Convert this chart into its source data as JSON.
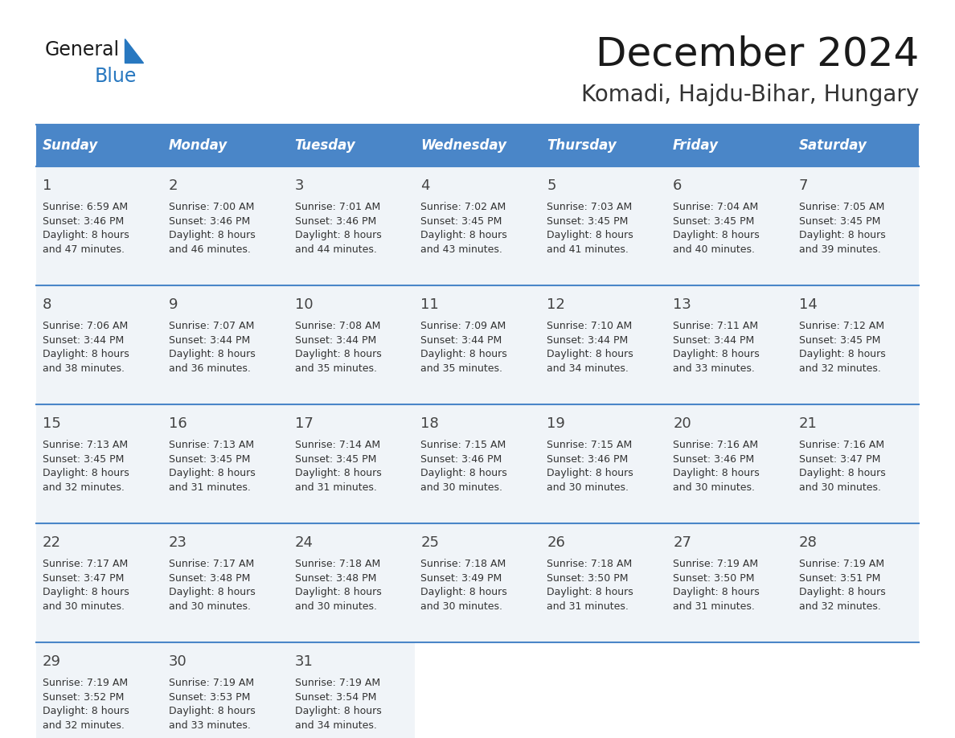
{
  "title": "December 2024",
  "subtitle": "Komadi, Hajdu-Bihar, Hungary",
  "header_bg_color": "#4a86c8",
  "header_text_color": "#ffffff",
  "days_of_week": [
    "Sunday",
    "Monday",
    "Tuesday",
    "Wednesday",
    "Thursday",
    "Friday",
    "Saturday"
  ],
  "row_bg_color": "#f0f4f8",
  "empty_bg_color": "#ffffff",
  "grid_line_color": "#4a86c8",
  "text_color": "#333333",
  "day_number_color": "#444444",
  "calendar_data": [
    [
      {
        "day": 1,
        "sunrise": "6:59 AM",
        "sunset": "3:46 PM",
        "daylight_suffix": "47 minutes."
      },
      {
        "day": 2,
        "sunrise": "7:00 AM",
        "sunset": "3:46 PM",
        "daylight_suffix": "46 minutes."
      },
      {
        "day": 3,
        "sunrise": "7:01 AM",
        "sunset": "3:46 PM",
        "daylight_suffix": "44 minutes."
      },
      {
        "day": 4,
        "sunrise": "7:02 AM",
        "sunset": "3:45 PM",
        "daylight_suffix": "43 minutes."
      },
      {
        "day": 5,
        "sunrise": "7:03 AM",
        "sunset": "3:45 PM",
        "daylight_suffix": "41 minutes."
      },
      {
        "day": 6,
        "sunrise": "7:04 AM",
        "sunset": "3:45 PM",
        "daylight_suffix": "40 minutes."
      },
      {
        "day": 7,
        "sunrise": "7:05 AM",
        "sunset": "3:45 PM",
        "daylight_suffix": "39 minutes."
      }
    ],
    [
      {
        "day": 8,
        "sunrise": "7:06 AM",
        "sunset": "3:44 PM",
        "daylight_suffix": "38 minutes."
      },
      {
        "day": 9,
        "sunrise": "7:07 AM",
        "sunset": "3:44 PM",
        "daylight_suffix": "36 minutes."
      },
      {
        "day": 10,
        "sunrise": "7:08 AM",
        "sunset": "3:44 PM",
        "daylight_suffix": "35 minutes."
      },
      {
        "day": 11,
        "sunrise": "7:09 AM",
        "sunset": "3:44 PM",
        "daylight_suffix": "35 minutes."
      },
      {
        "day": 12,
        "sunrise": "7:10 AM",
        "sunset": "3:44 PM",
        "daylight_suffix": "34 minutes."
      },
      {
        "day": 13,
        "sunrise": "7:11 AM",
        "sunset": "3:44 PM",
        "daylight_suffix": "33 minutes."
      },
      {
        "day": 14,
        "sunrise": "7:12 AM",
        "sunset": "3:45 PM",
        "daylight_suffix": "32 minutes."
      }
    ],
    [
      {
        "day": 15,
        "sunrise": "7:13 AM",
        "sunset": "3:45 PM",
        "daylight_suffix": "32 minutes."
      },
      {
        "day": 16,
        "sunrise": "7:13 AM",
        "sunset": "3:45 PM",
        "daylight_suffix": "31 minutes."
      },
      {
        "day": 17,
        "sunrise": "7:14 AM",
        "sunset": "3:45 PM",
        "daylight_suffix": "31 minutes."
      },
      {
        "day": 18,
        "sunrise": "7:15 AM",
        "sunset": "3:46 PM",
        "daylight_suffix": "30 minutes."
      },
      {
        "day": 19,
        "sunrise": "7:15 AM",
        "sunset": "3:46 PM",
        "daylight_suffix": "30 minutes."
      },
      {
        "day": 20,
        "sunrise": "7:16 AM",
        "sunset": "3:46 PM",
        "daylight_suffix": "30 minutes."
      },
      {
        "day": 21,
        "sunrise": "7:16 AM",
        "sunset": "3:47 PM",
        "daylight_suffix": "30 minutes."
      }
    ],
    [
      {
        "day": 22,
        "sunrise": "7:17 AM",
        "sunset": "3:47 PM",
        "daylight_suffix": "30 minutes."
      },
      {
        "day": 23,
        "sunrise": "7:17 AM",
        "sunset": "3:48 PM",
        "daylight_suffix": "30 minutes."
      },
      {
        "day": 24,
        "sunrise": "7:18 AM",
        "sunset": "3:48 PM",
        "daylight_suffix": "30 minutes."
      },
      {
        "day": 25,
        "sunrise": "7:18 AM",
        "sunset": "3:49 PM",
        "daylight_suffix": "30 minutes."
      },
      {
        "day": 26,
        "sunrise": "7:18 AM",
        "sunset": "3:50 PM",
        "daylight_suffix": "31 minutes."
      },
      {
        "day": 27,
        "sunrise": "7:19 AM",
        "sunset": "3:50 PM",
        "daylight_suffix": "31 minutes."
      },
      {
        "day": 28,
        "sunrise": "7:19 AM",
        "sunset": "3:51 PM",
        "daylight_suffix": "32 minutes."
      }
    ],
    [
      {
        "day": 29,
        "sunrise": "7:19 AM",
        "sunset": "3:52 PM",
        "daylight_suffix": "32 minutes."
      },
      {
        "day": 30,
        "sunrise": "7:19 AM",
        "sunset": "3:53 PM",
        "daylight_suffix": "33 minutes."
      },
      {
        "day": 31,
        "sunrise": "7:19 AM",
        "sunset": "3:54 PM",
        "daylight_suffix": "34 minutes."
      },
      null,
      null,
      null,
      null
    ]
  ],
  "logo_text_general": "General",
  "logo_text_blue": "Blue",
  "logo_color_general": "#1a1a1a",
  "logo_color_blue": "#2878c0",
  "logo_triangle_color": "#2878c0"
}
